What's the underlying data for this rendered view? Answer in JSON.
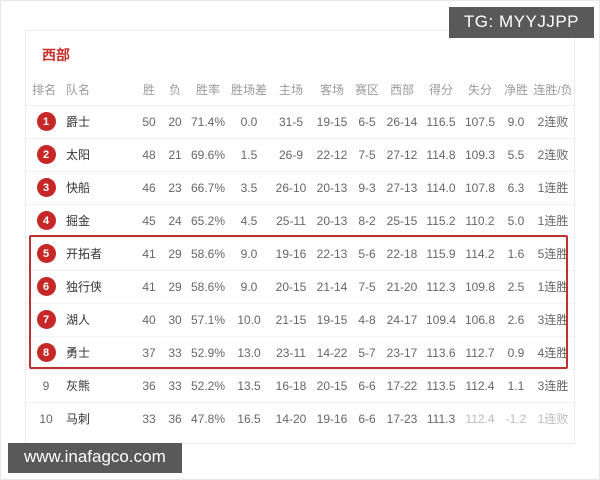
{
  "overlays": {
    "tg_badge": "TG: MYYJJPP",
    "watermark": "www.inafagco.com"
  },
  "section": {
    "title": "西部"
  },
  "table": {
    "columns": [
      "排名",
      "队名",
      "胜",
      "负",
      "胜率",
      "胜场差",
      "主场",
      "客场",
      "赛区",
      "西部",
      "得分",
      "失分",
      "净胜",
      "连胜/负"
    ],
    "badged_top_n": 8,
    "highlighted_ranks": [
      5,
      6,
      7,
      8
    ],
    "rows": [
      [
        "1",
        "爵士",
        "50",
        "20",
        "71.4%",
        "0.0",
        "31-5",
        "19-15",
        "6-5",
        "26-14",
        "116.5",
        "107.5",
        "9.0",
        "2连败"
      ],
      [
        "2",
        "太阳",
        "48",
        "21",
        "69.6%",
        "1.5",
        "26-9",
        "22-12",
        "7-5",
        "27-12",
        "114.8",
        "109.3",
        "5.5",
        "2连败"
      ],
      [
        "3",
        "快船",
        "46",
        "23",
        "66.7%",
        "3.5",
        "26-10",
        "20-13",
        "9-3",
        "27-13",
        "114.0",
        "107.8",
        "6.3",
        "1连胜"
      ],
      [
        "4",
        "掘金",
        "45",
        "24",
        "65.2%",
        "4.5",
        "25-11",
        "20-13",
        "8-2",
        "25-15",
        "115.2",
        "110.2",
        "5.0",
        "1连胜"
      ],
      [
        "5",
        "开拓者",
        "41",
        "29",
        "58.6%",
        "9.0",
        "19-16",
        "22-13",
        "5-6",
        "22-18",
        "115.9",
        "114.2",
        "1.6",
        "5连胜"
      ],
      [
        "6",
        "独行侠",
        "41",
        "29",
        "58.6%",
        "9.0",
        "20-15",
        "21-14",
        "7-5",
        "21-20",
        "112.3",
        "109.8",
        "2.5",
        "1连胜"
      ],
      [
        "7",
        "湖人",
        "40",
        "30",
        "57.1%",
        "10.0",
        "21-15",
        "19-15",
        "4-8",
        "24-17",
        "109.4",
        "106.8",
        "2.6",
        "3连胜"
      ],
      [
        "8",
        "勇士",
        "37",
        "33",
        "52.9%",
        "13.0",
        "23-11",
        "14-22",
        "5-7",
        "23-17",
        "113.6",
        "112.7",
        "0.9",
        "4连胜"
      ],
      [
        "9",
        "灰熊",
        "36",
        "33",
        "52.2%",
        "13.5",
        "16-18",
        "20-15",
        "6-6",
        "17-22",
        "113.5",
        "112.4",
        "1.1",
        "3连胜"
      ],
      [
        "10",
        "马刺",
        "33",
        "36",
        "47.8%",
        "16.5",
        "14-20",
        "19-16",
        "6-6",
        "17-23",
        "111.3",
        "112.4",
        "-1.2",
        "1连败"
      ]
    ]
  },
  "colors": {
    "accent_red": "#c9302c",
    "badge_red": "#c62828",
    "highlight_box_red": "#bf3030",
    "overlay_bg": "#595959"
  }
}
